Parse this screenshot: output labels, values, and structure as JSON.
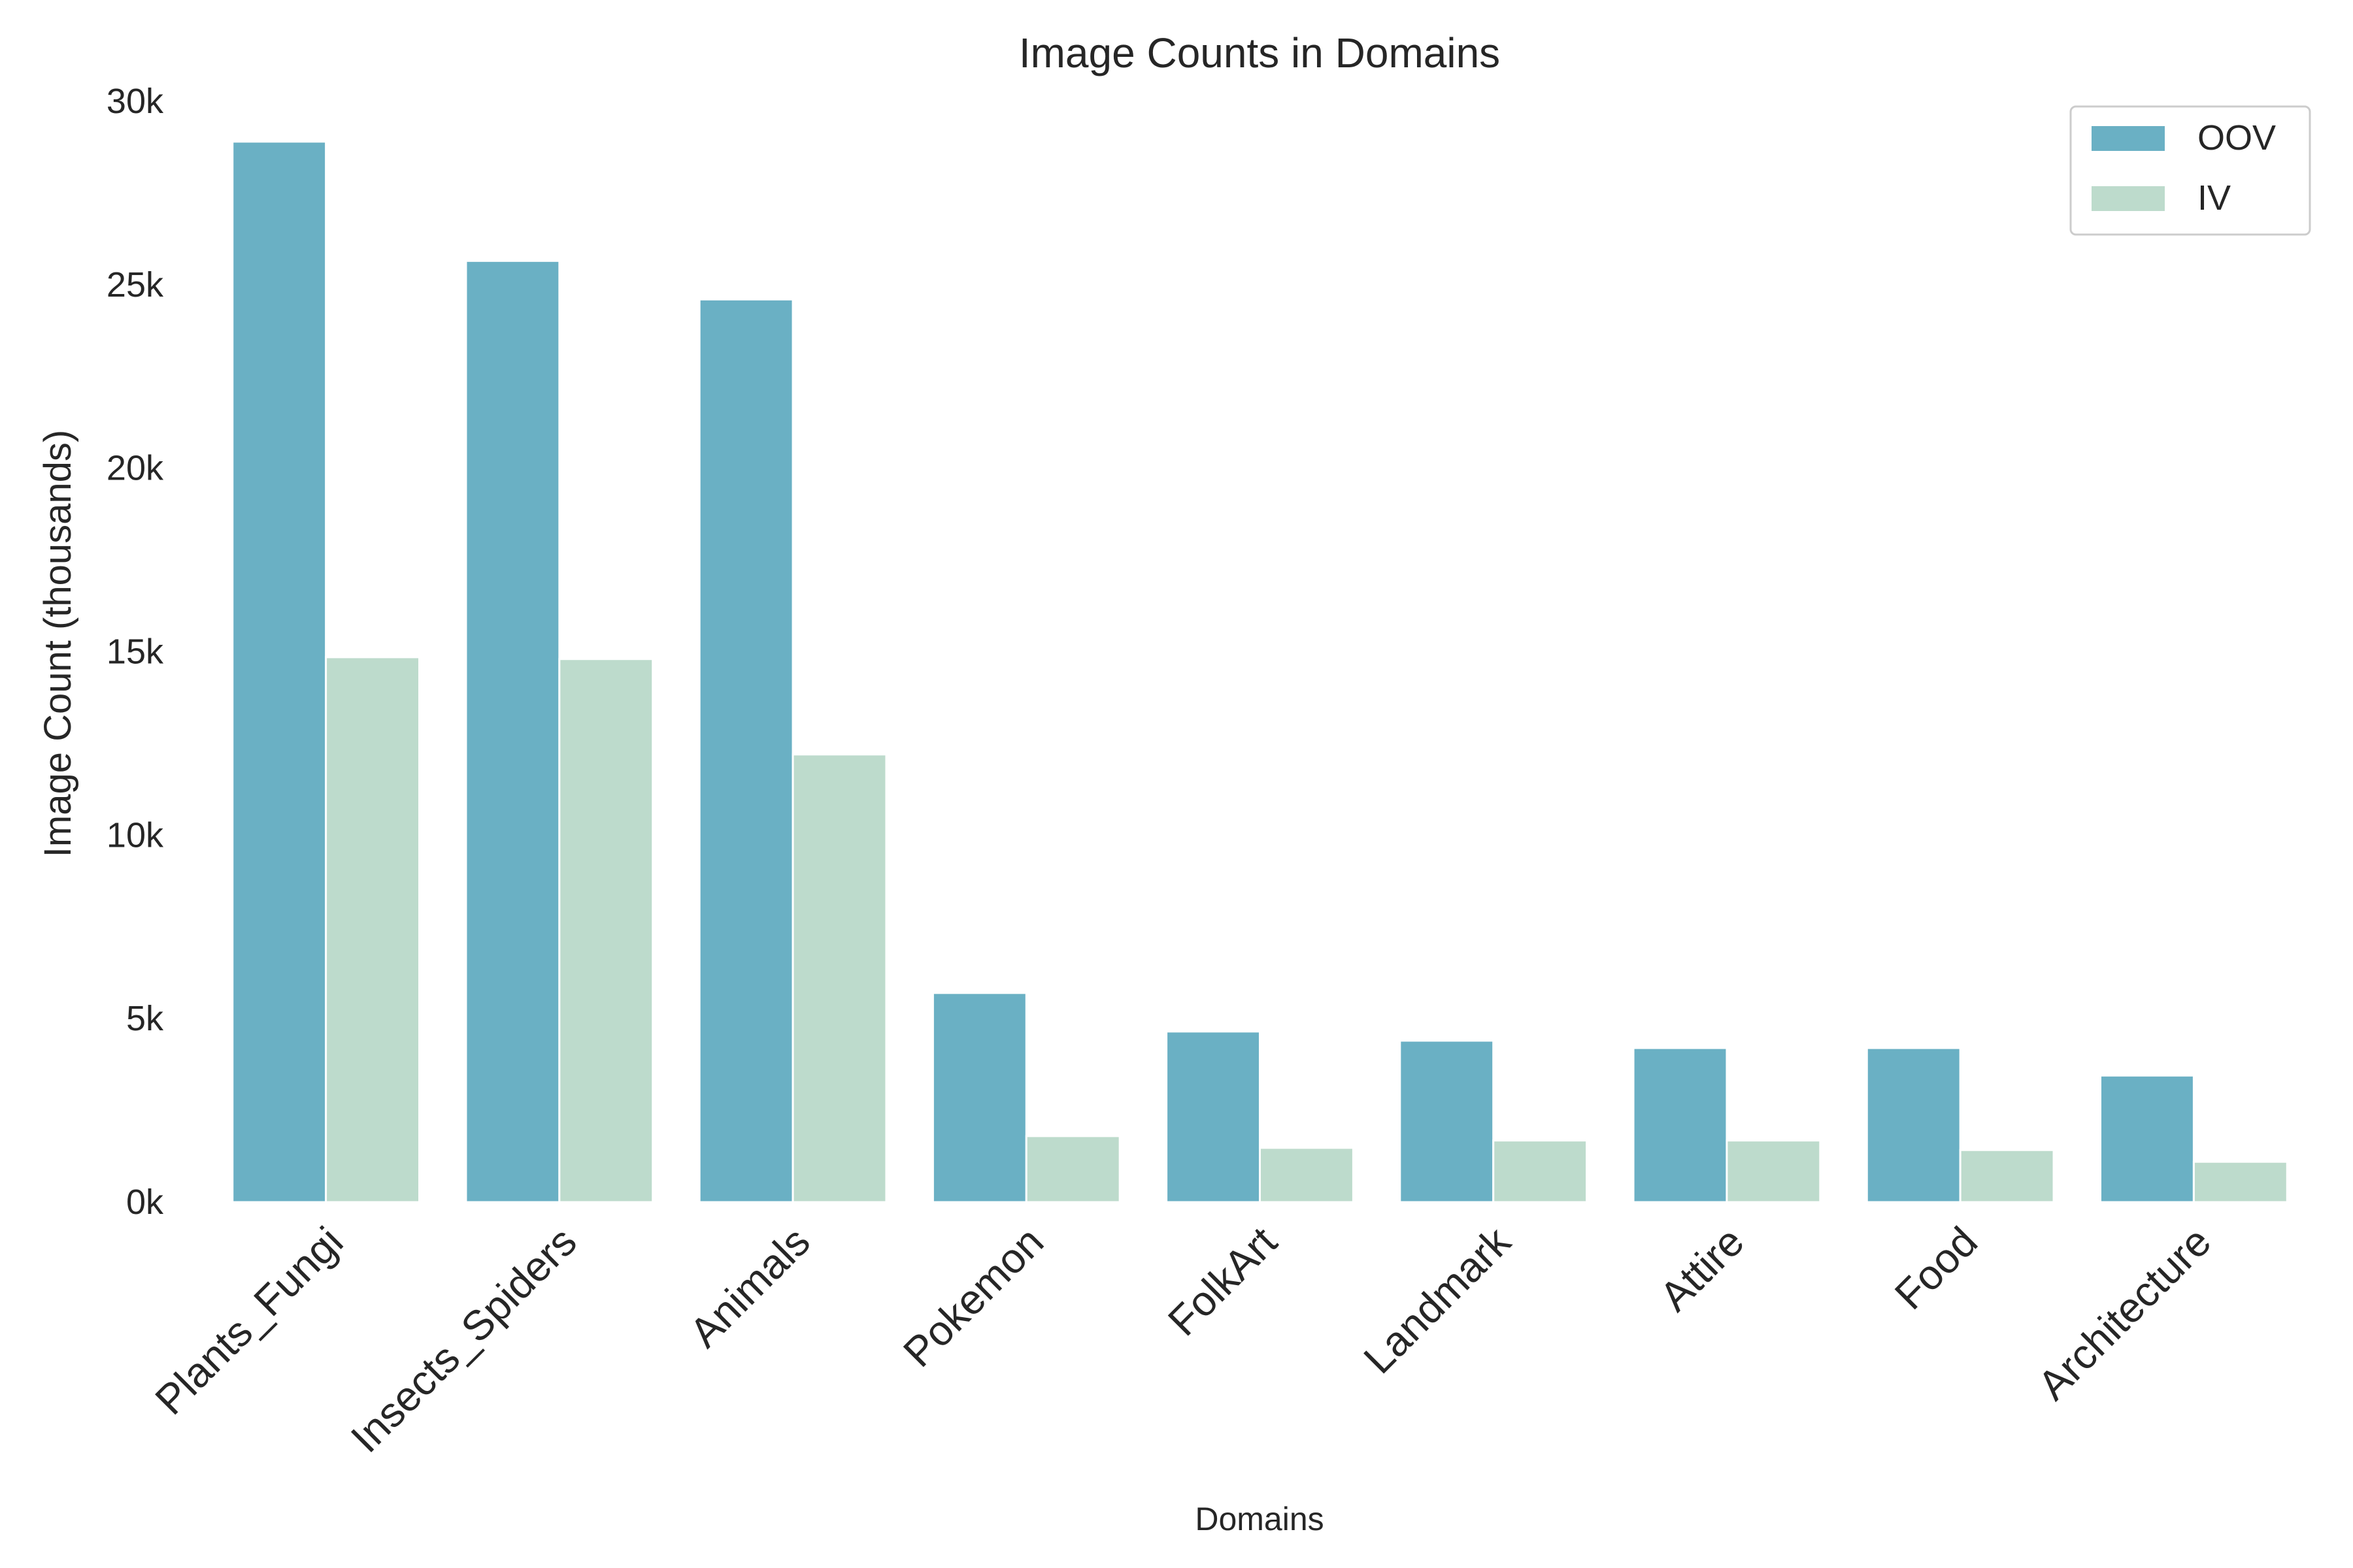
{
  "chart_data": {
    "type": "bar",
    "title": "Image Counts in Domains",
    "xlabel": "Domains",
    "ylabel": "Image Count (thousands)",
    "ylim": [
      0,
      30000
    ],
    "yticks": [
      0,
      5000,
      10000,
      15000,
      20000,
      25000,
      30000
    ],
    "ytick_labels": [
      "0k",
      "5k",
      "10k",
      "15k",
      "20k",
      "25k",
      "30k"
    ],
    "categories": [
      "Plants_Fungi",
      "Insects_Spiders",
      "Animals",
      "Pokemon",
      "FolkArt",
      "Landmark",
      "Attire",
      "Food",
      "Architecture"
    ],
    "series": [
      {
        "name": "OOV",
        "color": "#6ab0c4",
        "values": [
          28900,
          25650,
          24600,
          5700,
          4650,
          4400,
          4200,
          4200,
          3450
        ]
      },
      {
        "name": "IV",
        "color": "#bddbcc",
        "values": [
          14850,
          14800,
          12200,
          1800,
          1480,
          1680,
          1680,
          1420,
          1100
        ]
      }
    ],
    "legend_position": "top-right",
    "grid": false
  }
}
